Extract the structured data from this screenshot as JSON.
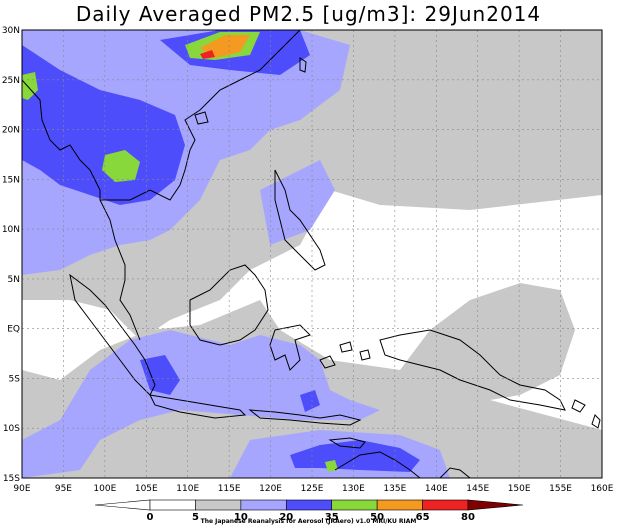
{
  "title": "Daily Averaged PM2.5 [ug/m3]: 29Jun2014",
  "credit": "The Japanese Reanalysis for Aerosol (JRAero) v1.0 MRI/KU RIAM",
  "x_axis": {
    "min": 90,
    "max": 160,
    "step": 5,
    "labels": [
      "90E",
      "95E",
      "100E",
      "105E",
      "110E",
      "115E",
      "120E",
      "125E",
      "130E",
      "135E",
      "140E",
      "145E",
      "150E",
      "155E",
      "160E"
    ]
  },
  "y_axis": {
    "min": -15,
    "max": 30,
    "step": 5,
    "labels": [
      "15S",
      "10S",
      "5S",
      "EQ",
      "5N",
      "10N",
      "15N",
      "20N",
      "25N",
      "30N"
    ]
  },
  "gridlines": true,
  "colorbar": {
    "thresholds": [
      0,
      5,
      10,
      20,
      35,
      50,
      65,
      80
    ],
    "colors": [
      "#ffffff",
      "#c8c8c8",
      "#a6a6fe",
      "#4d4dfc",
      "#88d83c",
      "#f59a20",
      "#ee2222",
      "#800000"
    ]
  }
}
